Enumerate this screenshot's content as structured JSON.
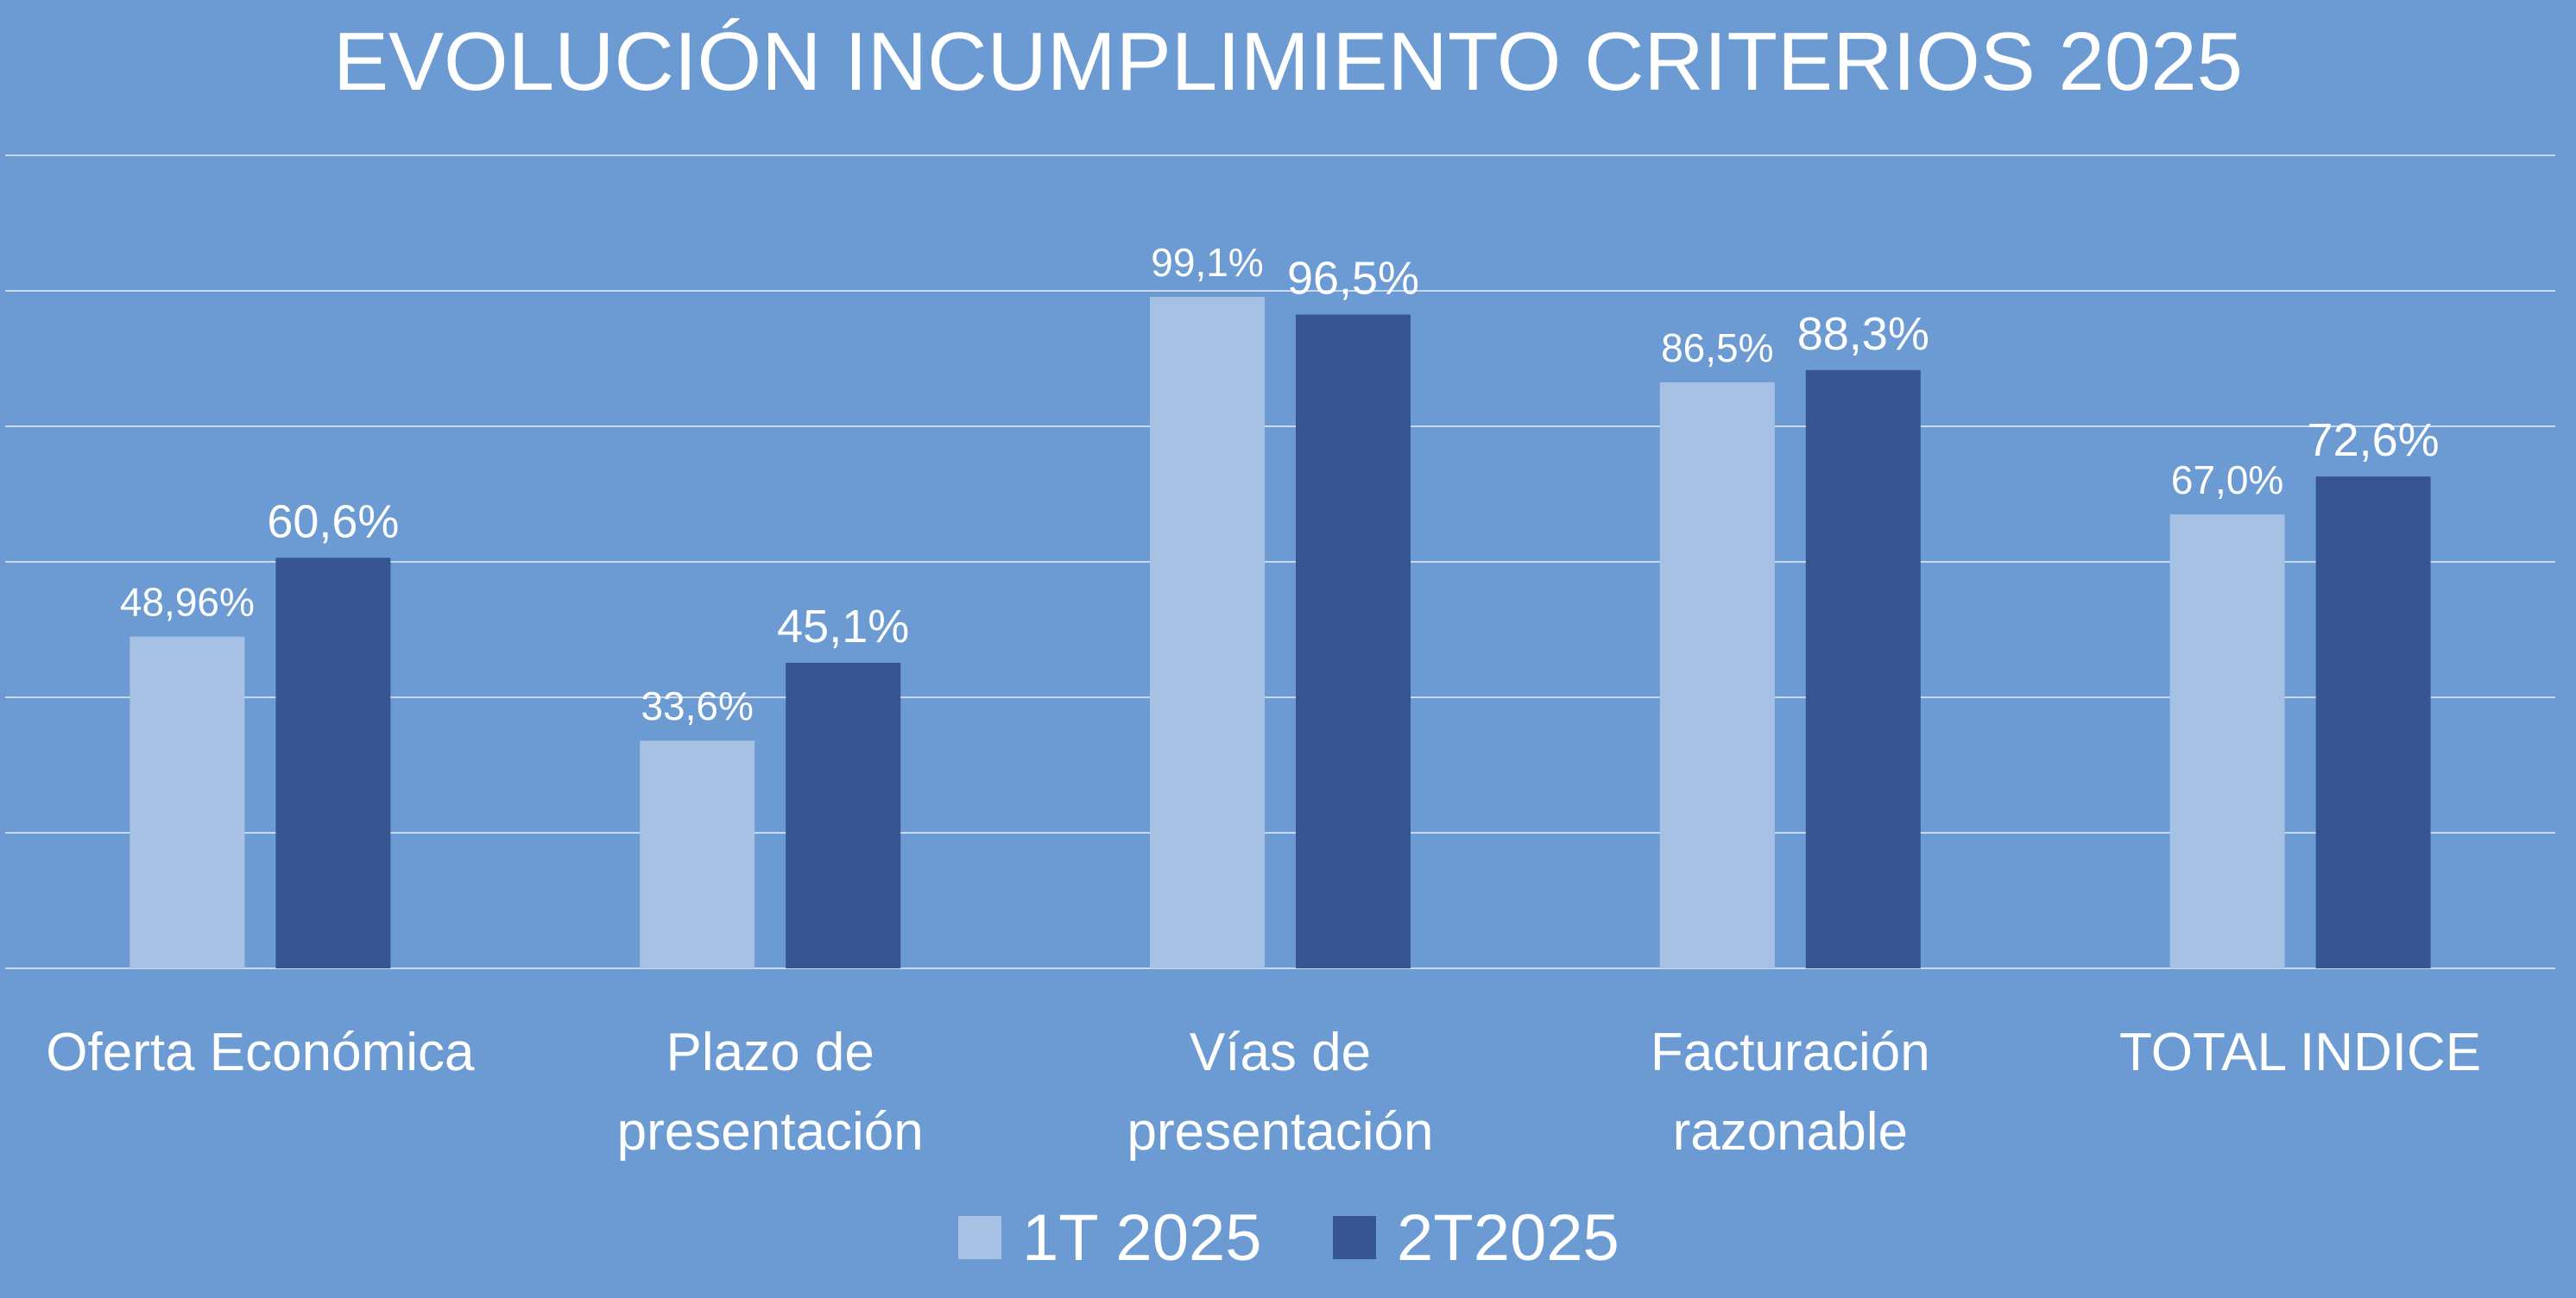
{
  "chart_data": {
    "type": "bar",
    "title": "EVOLUCIÓN INCUMPLIMIENTO CRITERIOS 2025",
    "xlabel": "",
    "ylabel": "",
    "categories": [
      [
        "Oferta Económica"
      ],
      [
        "Plazo de",
        "presentación"
      ],
      [
        "Vías de",
        "presentación"
      ],
      [
        "Facturación",
        "razonable"
      ],
      [
        "TOTAL INDICE"
      ]
    ],
    "series": [
      {
        "name": "1T 2025",
        "color": "#a6c1e3",
        "values": [
          48.96,
          33.6,
          99.1,
          86.5,
          67.0
        ],
        "labels": [
          "48,96%",
          "33,6%",
          "99,1%",
          "86,5%",
          "67,0%"
        ]
      },
      {
        "name": "2T2025",
        "color": "#375593",
        "values": [
          60.6,
          45.1,
          96.5,
          88.3,
          72.6
        ],
        "labels": [
          "60,6%",
          "45,1%",
          "96,5%",
          "88,3%",
          "72,6%"
        ]
      }
    ],
    "ylim": [
      0,
      120
    ],
    "gridlines": [
      0,
      20,
      40,
      60,
      80,
      100,
      120
    ],
    "grid": true,
    "y_axis_labels_visible": false,
    "legend": "bottom-center",
    "background_color": "#6b9bd2",
    "gridline_color": "#c8d8ee"
  }
}
